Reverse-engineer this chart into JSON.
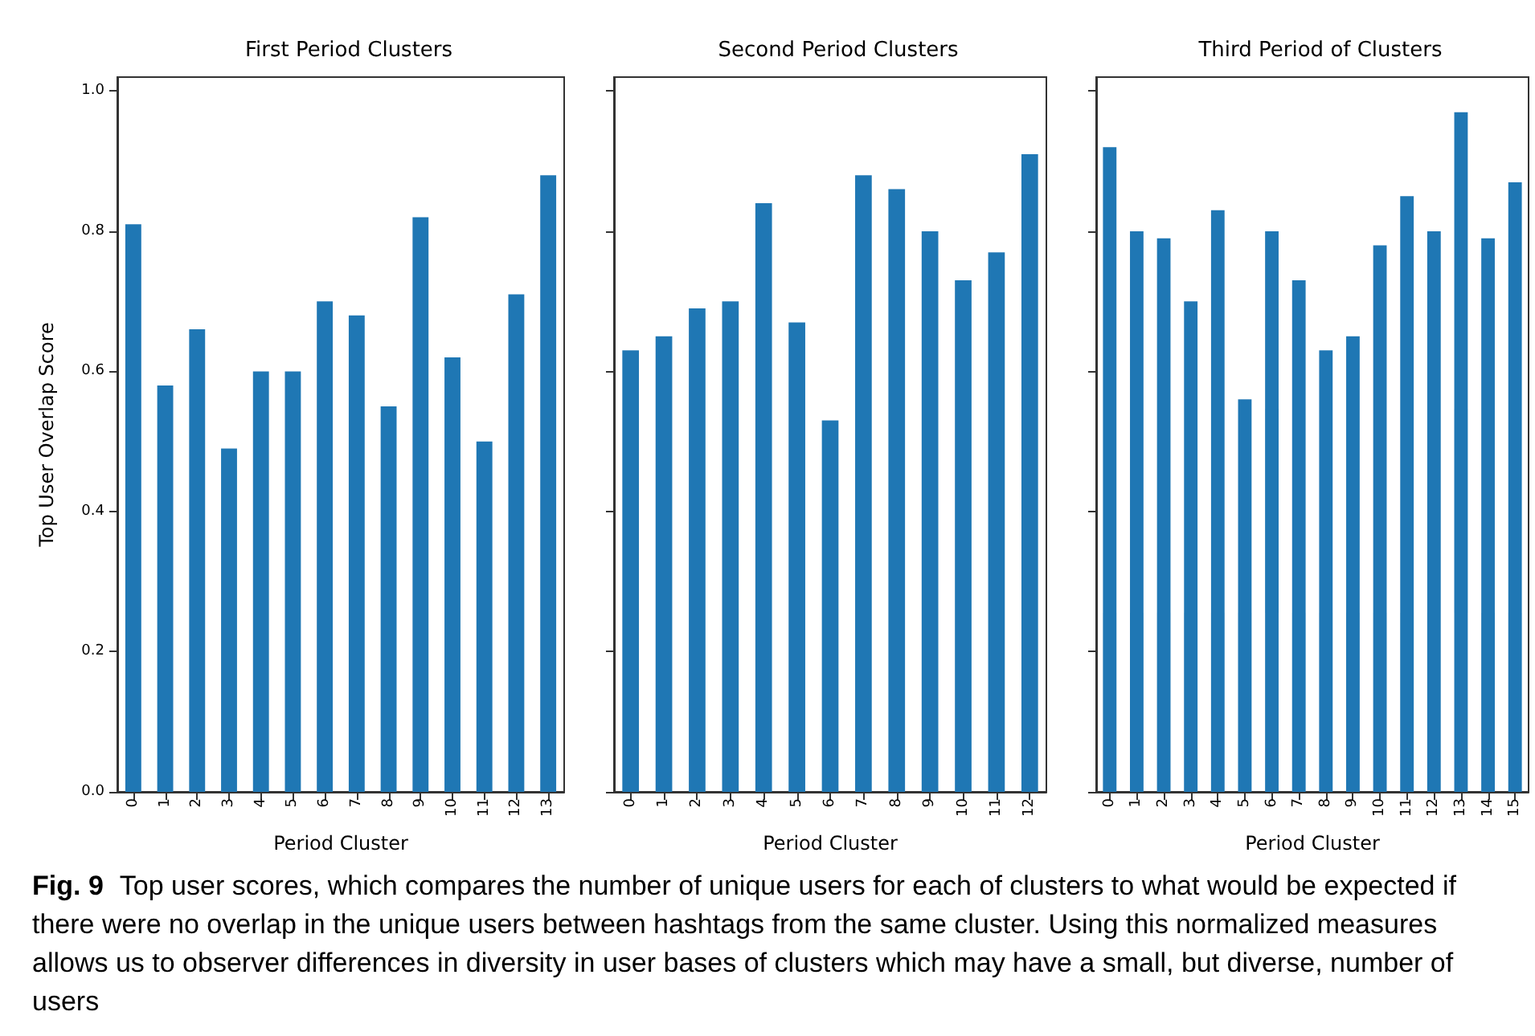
{
  "chart_data": [
    {
      "type": "bar",
      "title": "First Period Clusters",
      "xlabel": "Period Cluster",
      "ylabel": "Top User Overlap Score",
      "categories": [
        "0",
        "1",
        "2",
        "3",
        "4",
        "5",
        "6",
        "7",
        "8",
        "9",
        "10",
        "11",
        "12",
        "13"
      ],
      "color": "#1f77b4",
      "values": [
        0.81,
        0.58,
        0.66,
        0.49,
        0.6,
        0.6,
        0.7,
        0.68,
        0.55,
        0.82,
        0.62,
        0.5,
        0.71,
        0.88
      ],
      "ylim": [
        0,
        1.02
      ],
      "yticks": [
        {
          "value": 0,
          "label": "0.0"
        },
        0.2,
        0.4,
        0.6,
        0.8,
        {
          "value": 1,
          "label": "1.0"
        }
      ],
      "grid": false,
      "annotations": [
        "Fig. 9",
        "Top user scores, which compares the number of unique users for each of clusters to what would be expected if there were no overlap in the unique users between hashtags from the same cluster. Using this normalized measures allows us to observer differences in diversity in user bases of clusters which may have a small, but diverse, number of users"
      ]
    },
    {
      "type": "bar",
      "title": "Second Period Clusters",
      "xlabel": "Period Cluster",
      "categories": [
        "0",
        "1",
        "2",
        "3",
        "4",
        "5",
        "6",
        "7",
        "8",
        "9",
        "10",
        "11",
        "12"
      ],
      "color": "#1f77b4",
      "values": [
        0.63,
        0.65,
        0.69,
        0.7,
        0.84,
        0.67,
        0.53,
        0.88,
        0.86,
        0.8,
        0.73,
        0.77,
        0.91
      ],
      "ylim": [
        0,
        1.02
      ],
      "yticks": [
        {
          "value": 0,
          "label": null
        },
        {
          "value": 0.2,
          "label": null
        },
        {
          "value": 0.4,
          "label": null
        },
        {
          "value": 0.6,
          "label": null
        },
        {
          "value": 0.8,
          "label": null
        },
        {
          "value": 1,
          "label": null
        }
      ],
      "tick_labels": "x",
      "grid": false
    },
    {
      "type": "bar",
      "title": "Third Period of Clusters",
      "xlabel": "Period Cluster",
      "categories": [
        "0",
        "1",
        "2",
        "3",
        "4",
        "5",
        "6",
        "7",
        "8",
        "9",
        "10",
        "11",
        "12",
        "13",
        "14",
        "15"
      ],
      "color": "#1f77b4",
      "values": [
        0.92,
        0.8,
        0.79,
        0.7,
        0.83,
        0.56,
        0.8,
        0.73,
        0.63,
        0.65,
        0.78,
        0.85,
        0.8,
        0.97,
        0.79,
        0.87
      ],
      "ylim": [
        0,
        1.02
      ],
      "yticks": [
        {
          "value": 0,
          "label": null
        },
        {
          "value": 0.2,
          "label": null
        },
        {
          "value": 0.4,
          "label": null
        },
        {
          "value": 0.6,
          "label": null
        },
        {
          "value": 0.8,
          "label": null
        },
        {
          "value": 1,
          "label": null
        }
      ],
      "tick_labels": "x",
      "grid": false
    }
  ]
}
